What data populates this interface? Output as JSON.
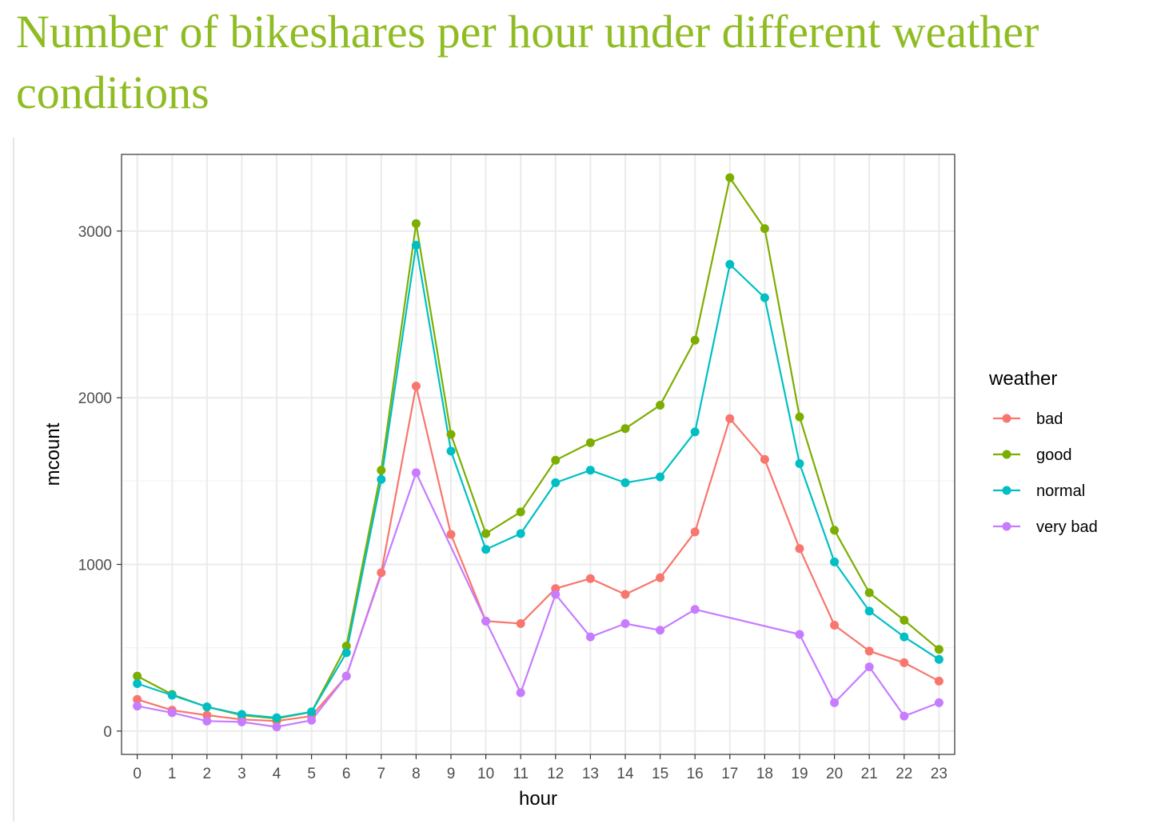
{
  "slide": {
    "title": "Number of bikeshares per hour under different weather conditions"
  },
  "chart_data": {
    "type": "line",
    "xlabel": "hour",
    "ylabel": "mcount",
    "xlim": [
      -0.45,
      23.45
    ],
    "ylim": [
      -140,
      3460
    ],
    "x_ticks": [
      0,
      1,
      2,
      3,
      4,
      5,
      6,
      7,
      8,
      9,
      10,
      11,
      12,
      13,
      14,
      15,
      16,
      17,
      18,
      19,
      20,
      21,
      22,
      23
    ],
    "y_ticks": [
      0,
      1000,
      2000,
      3000
    ],
    "grid": true,
    "legend": {
      "title": "weather",
      "position": "right"
    },
    "series": [
      {
        "name": "bad",
        "color": "#F8766D",
        "x": [
          0,
          1,
          2,
          3,
          4,
          5,
          6,
          7,
          8,
          9,
          10,
          11,
          12,
          13,
          14,
          15,
          16,
          17,
          18,
          19,
          20,
          21,
          22,
          23
        ],
        "y": [
          190,
          125,
          95,
          70,
          60,
          90,
          330,
          950,
          2070,
          1180,
          660,
          645,
          855,
          915,
          820,
          920,
          1195,
          1875,
          1630,
          1095,
          635,
          480,
          410,
          300
        ]
      },
      {
        "name": "good",
        "color": "#7CAE00",
        "x": [
          0,
          1,
          2,
          3,
          4,
          5,
          6,
          7,
          8,
          9,
          10,
          11,
          12,
          13,
          14,
          15,
          16,
          17,
          18,
          19,
          20,
          21,
          22,
          23
        ],
        "y": [
          330,
          220,
          145,
          95,
          75,
          115,
          510,
          1565,
          3045,
          1780,
          1185,
          1315,
          1625,
          1730,
          1815,
          1955,
          2345,
          3320,
          3015,
          1885,
          1205,
          830,
          665,
          490
        ]
      },
      {
        "name": "normal",
        "color": "#00BFC4",
        "x": [
          0,
          1,
          2,
          3,
          4,
          5,
          6,
          7,
          8,
          9,
          10,
          11,
          12,
          13,
          14,
          15,
          16,
          17,
          18,
          19,
          20,
          21,
          22,
          23
        ],
        "y": [
          285,
          215,
          145,
          100,
          80,
          115,
          470,
          1510,
          2915,
          1680,
          1090,
          1185,
          1490,
          1565,
          1490,
          1525,
          1795,
          2800,
          2600,
          1605,
          1015,
          720,
          565,
          430
        ]
      },
      {
        "name": "very bad",
        "color": "#C77CFF",
        "x": [
          0,
          1,
          2,
          3,
          4,
          5,
          6,
          8,
          10,
          11,
          12,
          13,
          14,
          15,
          16,
          19,
          20,
          21,
          22,
          23
        ],
        "y": [
          150,
          110,
          60,
          55,
          25,
          65,
          330,
          1550,
          660,
          230,
          820,
          565,
          645,
          605,
          730,
          580,
          170,
          385,
          90,
          170
        ]
      }
    ]
  }
}
